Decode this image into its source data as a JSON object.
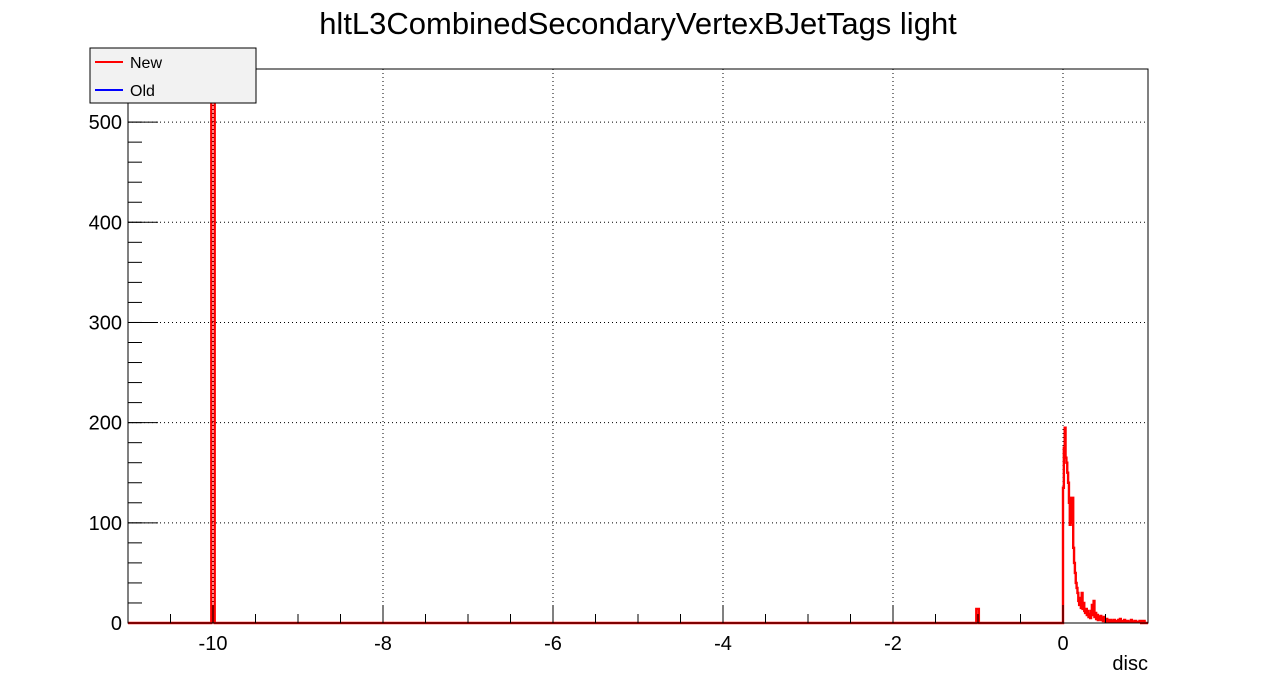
{
  "chart_data": {
    "type": "line",
    "title": "hltL3CombinedSecondaryVertexBJetTags light",
    "xlabel": "disc",
    "ylabel": "",
    "xlim": [
      -11,
      1
    ],
    "ylim": [
      0,
      553
    ],
    "xticks": [
      -10,
      -8,
      -6,
      -4,
      -2,
      0
    ],
    "yticks": [
      0,
      100,
      200,
      300,
      400,
      500
    ],
    "grid": true,
    "legend": {
      "position": "top-left"
    },
    "series": [
      {
        "name": "New",
        "color": "#ff0000",
        "points": [
          [
            -11.0,
            0
          ],
          [
            -10.02,
            0
          ],
          [
            -10.02,
            530
          ],
          [
            -9.98,
            530
          ],
          [
            -9.98,
            0
          ],
          [
            -1.02,
            0
          ],
          [
            -1.02,
            14
          ],
          [
            -0.99,
            14
          ],
          [
            -0.99,
            0
          ],
          [
            0.0,
            0
          ],
          [
            0.0,
            135
          ],
          [
            0.01,
            135
          ],
          [
            0.01,
            175
          ],
          [
            0.02,
            175
          ],
          [
            0.02,
            195
          ],
          [
            0.03,
            195
          ],
          [
            0.03,
            165
          ],
          [
            0.04,
            165
          ],
          [
            0.04,
            160
          ],
          [
            0.05,
            160
          ],
          [
            0.05,
            150
          ],
          [
            0.06,
            150
          ],
          [
            0.06,
            140
          ],
          [
            0.07,
            140
          ],
          [
            0.07,
            120
          ],
          [
            0.08,
            120
          ],
          [
            0.08,
            98
          ],
          [
            0.09,
            98
          ],
          [
            0.09,
            125
          ],
          [
            0.1,
            125
          ],
          [
            0.1,
            100
          ],
          [
            0.11,
            100
          ],
          [
            0.11,
            125
          ],
          [
            0.12,
            125
          ],
          [
            0.12,
            75
          ],
          [
            0.13,
            75
          ],
          [
            0.13,
            60
          ],
          [
            0.14,
            60
          ],
          [
            0.14,
            50
          ],
          [
            0.15,
            50
          ],
          [
            0.15,
            40
          ],
          [
            0.16,
            40
          ],
          [
            0.16,
            35
          ],
          [
            0.17,
            35
          ],
          [
            0.17,
            30
          ],
          [
            0.18,
            30
          ],
          [
            0.18,
            22
          ],
          [
            0.19,
            22
          ],
          [
            0.19,
            18
          ],
          [
            0.2,
            18
          ],
          [
            0.2,
            25
          ],
          [
            0.21,
            25
          ],
          [
            0.21,
            15
          ],
          [
            0.22,
            15
          ],
          [
            0.22,
            30
          ],
          [
            0.23,
            30
          ],
          [
            0.23,
            14
          ],
          [
            0.24,
            14
          ],
          [
            0.24,
            20
          ],
          [
            0.25,
            20
          ],
          [
            0.25,
            12
          ],
          [
            0.26,
            12
          ],
          [
            0.26,
            10
          ],
          [
            0.27,
            10
          ],
          [
            0.27,
            14
          ],
          [
            0.28,
            14
          ],
          [
            0.28,
            8
          ],
          [
            0.29,
            8
          ],
          [
            0.29,
            12
          ],
          [
            0.3,
            12
          ],
          [
            0.3,
            6
          ],
          [
            0.31,
            6
          ],
          [
            0.31,
            9
          ],
          [
            0.32,
            9
          ],
          [
            0.32,
            5
          ],
          [
            0.33,
            5
          ],
          [
            0.33,
            12
          ],
          [
            0.34,
            12
          ],
          [
            0.34,
            18
          ],
          [
            0.35,
            18
          ],
          [
            0.35,
            8
          ],
          [
            0.36,
            8
          ],
          [
            0.36,
            22
          ],
          [
            0.37,
            22
          ],
          [
            0.37,
            6
          ],
          [
            0.38,
            6
          ],
          [
            0.38,
            10
          ],
          [
            0.39,
            10
          ],
          [
            0.39,
            4
          ],
          [
            0.4,
            4
          ],
          [
            0.4,
            8
          ],
          [
            0.41,
            8
          ],
          [
            0.41,
            3
          ],
          [
            0.42,
            3
          ],
          [
            0.42,
            6
          ],
          [
            0.43,
            6
          ],
          [
            0.43,
            4
          ],
          [
            0.44,
            4
          ],
          [
            0.44,
            7
          ],
          [
            0.45,
            7
          ],
          [
            0.45,
            3
          ],
          [
            0.46,
            3
          ],
          [
            0.46,
            5
          ],
          [
            0.47,
            5
          ],
          [
            0.47,
            2
          ],
          [
            0.48,
            2
          ],
          [
            0.48,
            6
          ],
          [
            0.49,
            6
          ],
          [
            0.49,
            3
          ],
          [
            0.5,
            3
          ],
          [
            0.5,
            1
          ],
          [
            0.51,
            1
          ],
          [
            0.51,
            4
          ],
          [
            0.52,
            4
          ],
          [
            0.52,
            2
          ],
          [
            0.53,
            2
          ],
          [
            0.53,
            3
          ],
          [
            0.54,
            3
          ],
          [
            0.54,
            1
          ],
          [
            0.55,
            1
          ],
          [
            0.55,
            2
          ],
          [
            0.56,
            2
          ],
          [
            0.56,
            3
          ],
          [
            0.57,
            3
          ],
          [
            0.57,
            1
          ],
          [
            0.58,
            1
          ],
          [
            0.58,
            2
          ],
          [
            0.59,
            2
          ],
          [
            0.59,
            1
          ],
          [
            0.6,
            1
          ],
          [
            0.6,
            3
          ],
          [
            0.61,
            3
          ],
          [
            0.61,
            1
          ],
          [
            0.62,
            1
          ],
          [
            0.62,
            2
          ],
          [
            0.63,
            2
          ],
          [
            0.63,
            1
          ],
          [
            0.64,
            1
          ],
          [
            0.64,
            2
          ],
          [
            0.65,
            2
          ],
          [
            0.65,
            3
          ],
          [
            0.66,
            3
          ],
          [
            0.66,
            1
          ],
          [
            0.67,
            1
          ],
          [
            0.67,
            4
          ],
          [
            0.68,
            4
          ],
          [
            0.68,
            1
          ],
          [
            0.69,
            1
          ],
          [
            0.69,
            2
          ],
          [
            0.7,
            2
          ],
          [
            0.7,
            1
          ],
          [
            0.72,
            1
          ],
          [
            0.72,
            3
          ],
          [
            0.73,
            3
          ],
          [
            0.73,
            1
          ],
          [
            0.75,
            1
          ],
          [
            0.75,
            2
          ],
          [
            0.77,
            2
          ],
          [
            0.77,
            1
          ],
          [
            0.8,
            1
          ],
          [
            0.8,
            3
          ],
          [
            0.81,
            3
          ],
          [
            0.81,
            1
          ],
          [
            0.84,
            1
          ],
          [
            0.84,
            2
          ],
          [
            0.86,
            2
          ],
          [
            0.86,
            1
          ],
          [
            0.9,
            1
          ],
          [
            0.9,
            2
          ],
          [
            0.92,
            2
          ],
          [
            0.92,
            0
          ],
          [
            0.94,
            0
          ],
          [
            0.94,
            2
          ],
          [
            0.96,
            2
          ],
          [
            0.96,
            0
          ],
          [
            1.0,
            0
          ]
        ]
      },
      {
        "name": "Old",
        "color": "#0000ff",
        "points": []
      }
    ]
  }
}
